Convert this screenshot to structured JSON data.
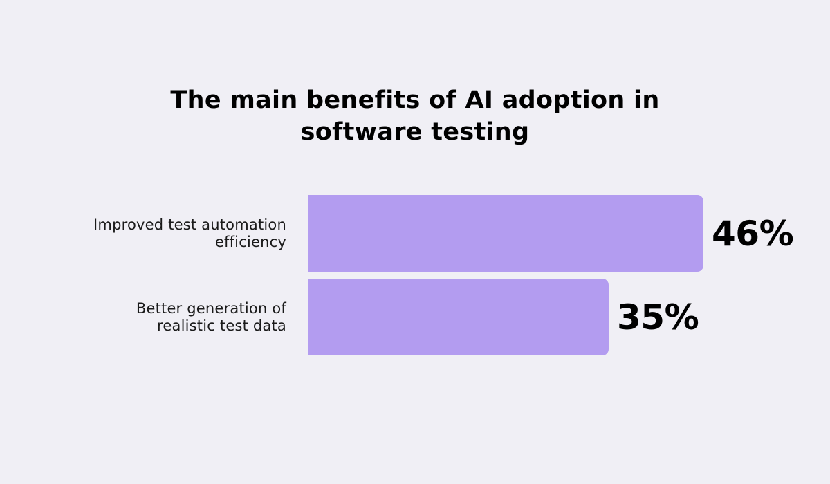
{
  "chart_data": {
    "type": "bar",
    "orientation": "horizontal",
    "title": "The main benefits of AI adoption in software testing",
    "categories": [
      "Improved test automation efficiency",
      "Better generation of realistic test data"
    ],
    "category_lines": [
      [
        "Improved test automation",
        "efficiency"
      ],
      [
        "Better generation of",
        "realistic test data"
      ]
    ],
    "values": [
      46,
      35
    ],
    "value_labels": [
      "46%",
      "35%"
    ],
    "unit": "%",
    "xlim": [
      0,
      46
    ],
    "grid": false,
    "legend": "none",
    "bar_color": "#b39cf0",
    "background_color": "#f0eff5"
  }
}
